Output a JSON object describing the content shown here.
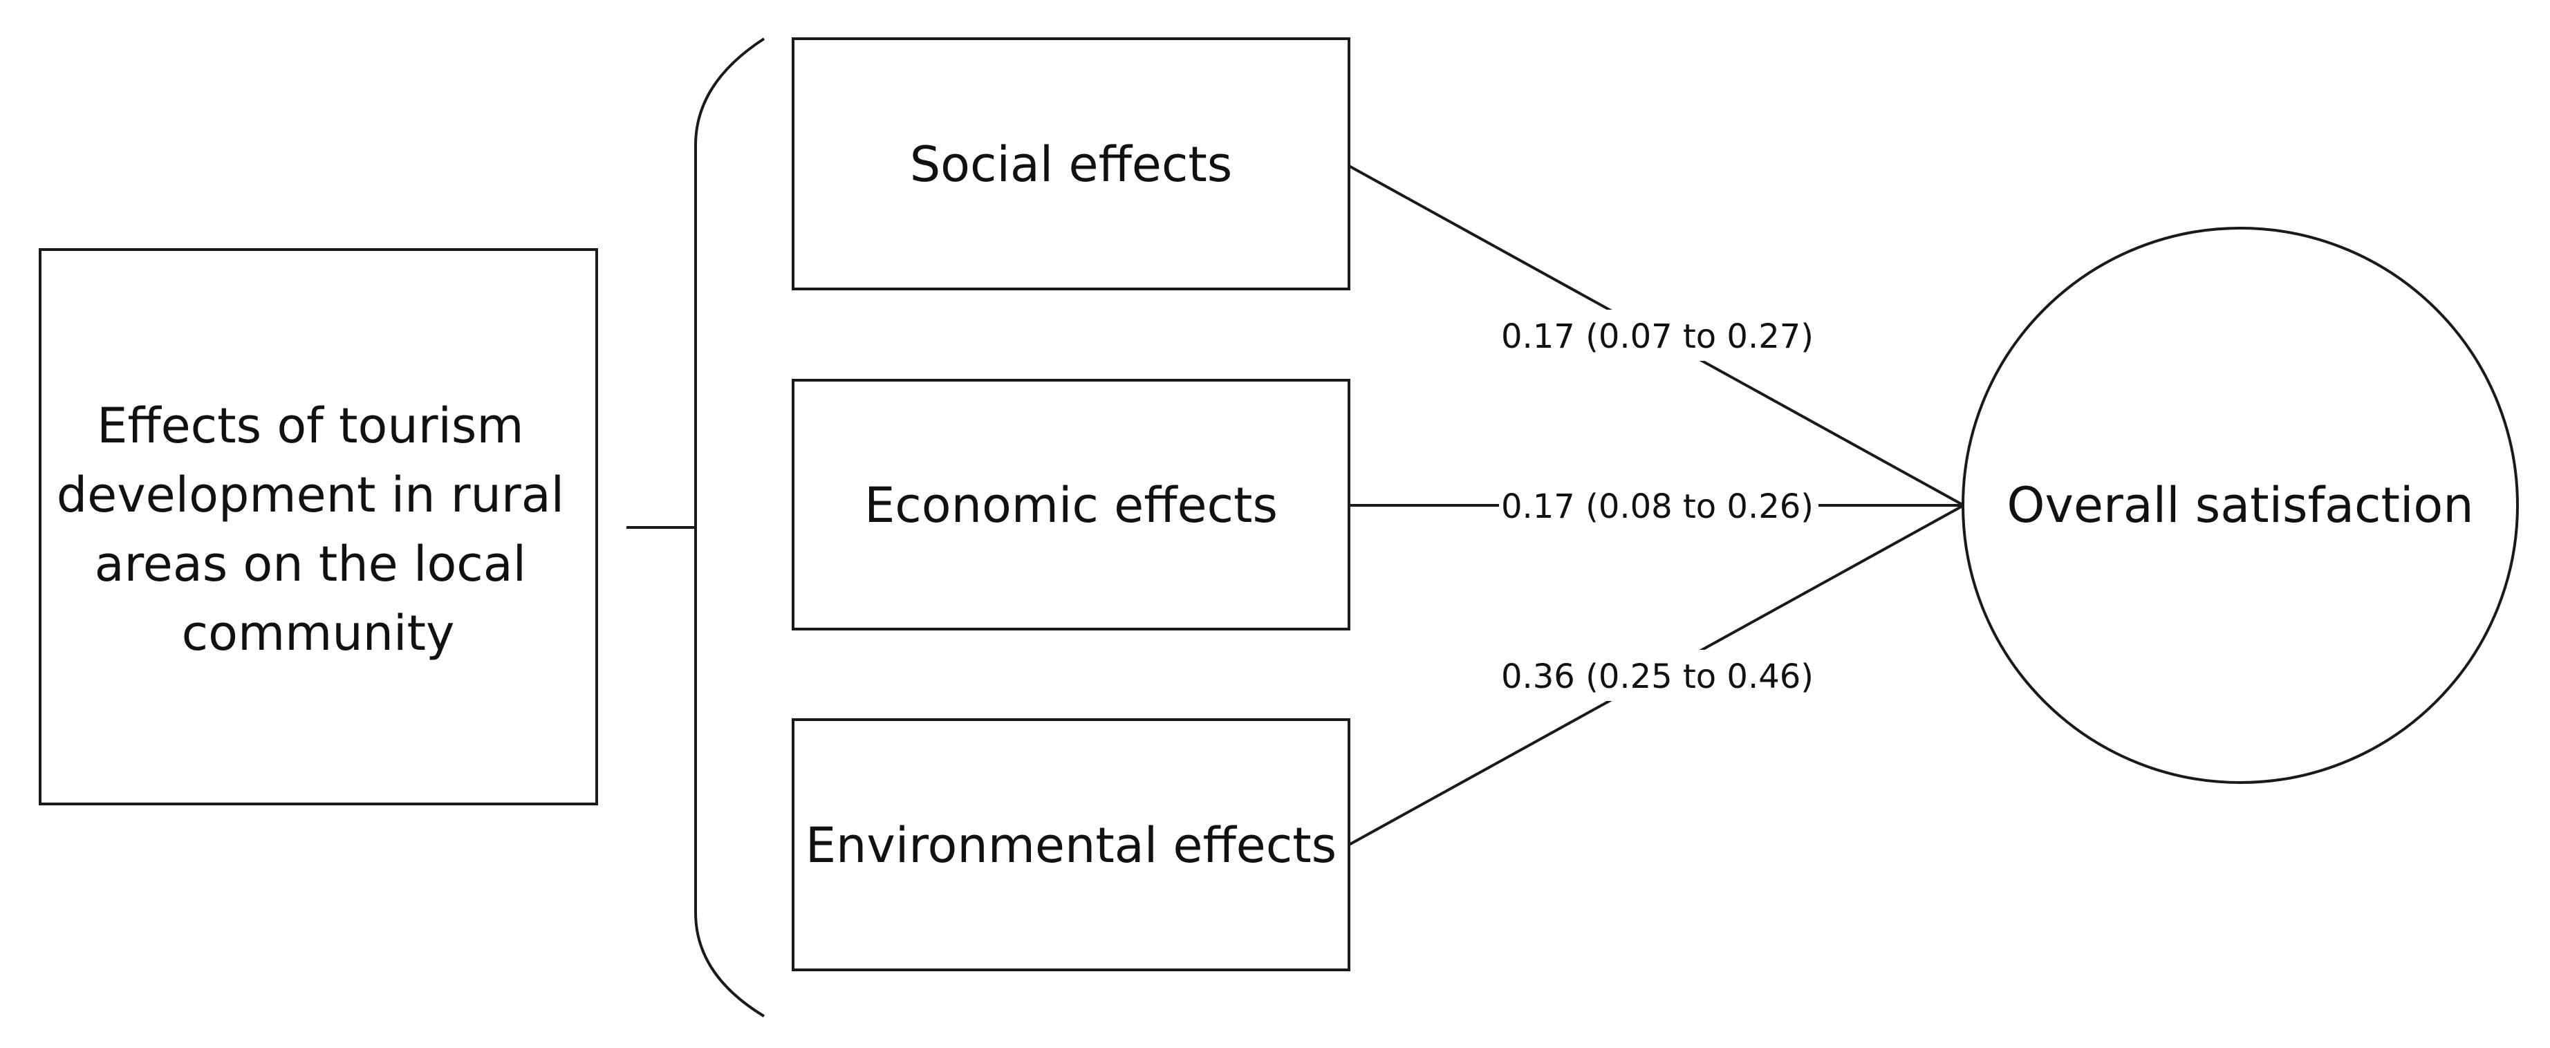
{
  "source_box": {
    "lines": [
      "Effects of tourism",
      "development in rural",
      "areas on the local",
      "community"
    ]
  },
  "effects": [
    {
      "label": "Social effects",
      "coefficient": "0.17 (0.07 to 0.27)"
    },
    {
      "label": "Economic effects",
      "coefficient": "0.17 (0.08 to 0.26)"
    },
    {
      "label": "Environmental effects",
      "coefficient": "0.36 (0.25 to 0.46)"
    }
  ],
  "outcome": {
    "label": "Overall satisfaction"
  }
}
